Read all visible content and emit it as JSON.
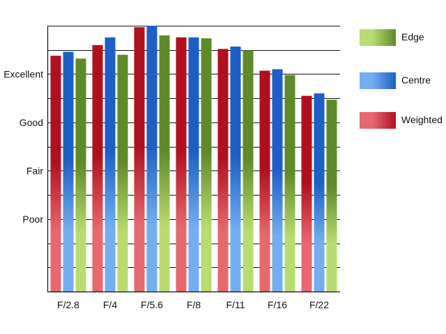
{
  "chart_data": {
    "type": "bar",
    "categories": [
      "F/2.8",
      "F/4",
      "F/5.6",
      "F/8",
      "F/11",
      "F/16",
      "F/22"
    ],
    "series": [
      {
        "name": "Weighted",
        "values": [
          4.38,
          4.6,
          4.97,
          4.76,
          4.52,
          4.07,
          3.55
        ]
      },
      {
        "name": "Centre",
        "values": [
          4.46,
          4.76,
          5.0,
          4.76,
          4.57,
          4.1,
          3.6
        ]
      },
      {
        "name": "Edge",
        "values": [
          4.32,
          4.4,
          4.8,
          4.74,
          4.49,
          3.98,
          3.47
        ]
      }
    ],
    "y_tick_labels": [
      {
        "value": 1,
        "label": "Poor"
      },
      {
        "value": 2,
        "label": "Fair"
      },
      {
        "value": 3,
        "label": "Good"
      },
      {
        "value": 4,
        "label": "Excellent"
      }
    ],
    "ylim": [
      -0.5,
      5.0
    ],
    "grid": true,
    "legend_position": "right",
    "colors": {
      "Weighted": {
        "dark": "#b0101e",
        "light": "#e86870"
      },
      "Centre": {
        "dark": "#1d5fc4",
        "light": "#74aef0"
      },
      "Edge": {
        "dark": "#5f8a2a",
        "light": "#b9dc70"
      }
    }
  },
  "legend": {
    "items": [
      {
        "label": "Edge",
        "series": "Edge"
      },
      {
        "label": "Centre",
        "series": "Centre"
      },
      {
        "label": "Weighted",
        "series": "Weighted"
      }
    ]
  }
}
